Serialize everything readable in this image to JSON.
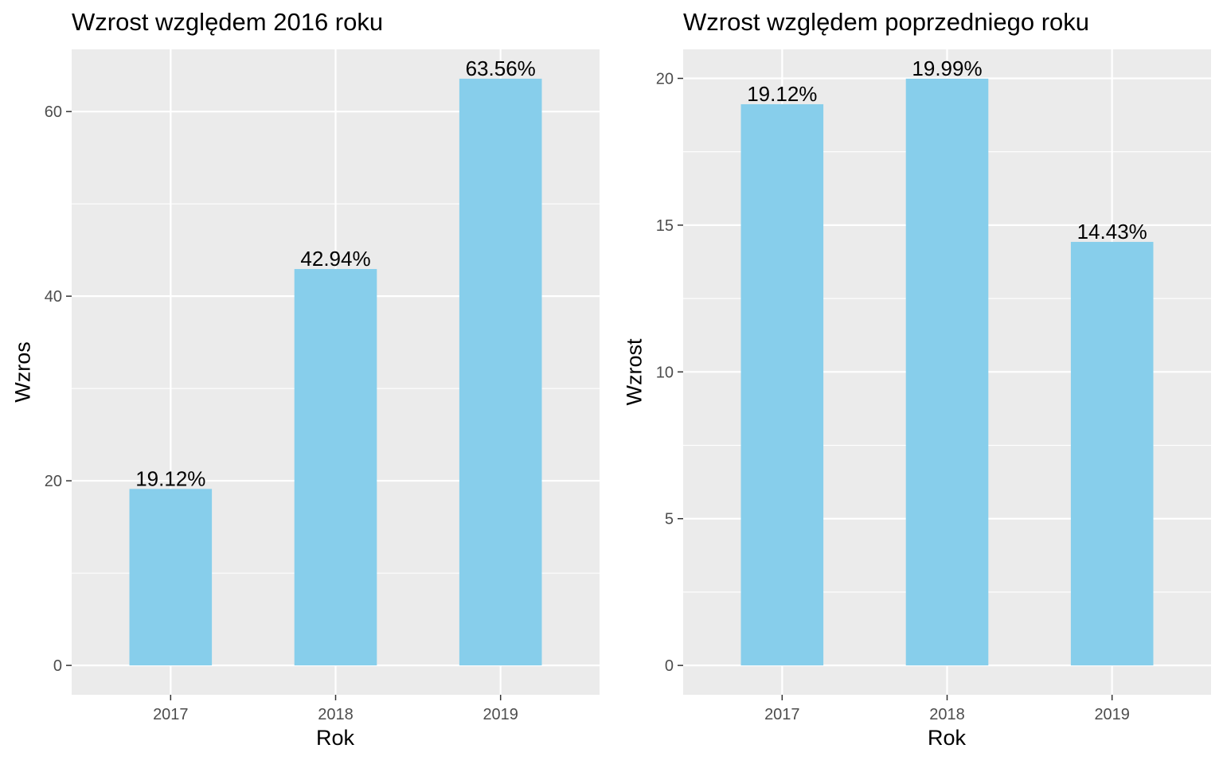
{
  "chart_data": [
    {
      "type": "bar",
      "title": "Wzrost względem 2016 roku",
      "xlabel": "Rok",
      "ylabel": "Wzros",
      "categories": [
        "2017",
        "2018",
        "2019"
      ],
      "values": [
        19.12,
        42.94,
        63.56
      ],
      "data_labels": [
        "19.12%",
        "42.94%",
        "63.56%"
      ],
      "yticks": [
        0,
        20,
        40,
        60
      ],
      "ylim": [
        -3.18,
        66.74
      ],
      "grid": true,
      "bar_color": "#87CEEB",
      "panel_color": "#EBEBEB"
    },
    {
      "type": "bar",
      "title": "Wzrost względem poprzedniego roku",
      "xlabel": "Rok",
      "ylabel": "Wzrost",
      "categories": [
        "2017",
        "2018",
        "2019"
      ],
      "values": [
        19.12,
        19.99,
        14.43
      ],
      "data_labels": [
        "19.12%",
        "19.99%",
        "14.43%"
      ],
      "yticks": [
        0,
        5,
        10,
        15,
        20
      ],
      "ylim": [
        -0.9995,
        20.9895
      ],
      "grid": true,
      "bar_color": "#87CEEB",
      "panel_color": "#EBEBEB"
    }
  ]
}
